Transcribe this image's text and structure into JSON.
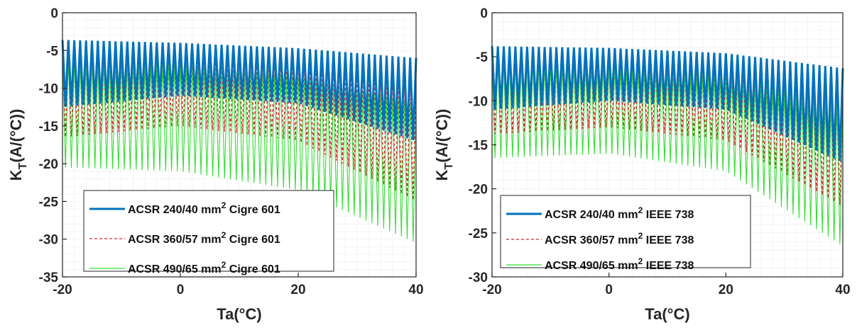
{
  "chart_data": [
    {
      "type": "line",
      "xlabel": "Ta(°C)",
      "ylabel_main": "K",
      "ylabel_sub": "T",
      "ylabel_rest": "(A/(°C))",
      "xlim": [
        -20,
        40
      ],
      "ylim": [
        -35,
        0
      ],
      "xticks": [
        "-20",
        "0",
        "20",
        "40"
      ],
      "yticks": [
        "0",
        "-5",
        "-10",
        "-15",
        "-20",
        "-25",
        "-30",
        "-35"
      ],
      "grid": "minor",
      "legend_position": "bottom-left",
      "oscillation_cycles": 60,
      "series": [
        {
          "name_main": "ACSR 240/40 mm",
          "name_sup": "2",
          "name_tail": " Cigre 601",
          "color": "#0072BD",
          "style": "solid",
          "x": [
            -20,
            0,
            20,
            40
          ],
          "upper": [
            -3.6,
            -4.0,
            -4.7,
            -6.0
          ],
          "lower": [
            -12.5,
            -11.0,
            -12.0,
            -17.0
          ]
        },
        {
          "name_main": "ACSR 360/57 mm",
          "name_sup": "2",
          "name_tail": " Cigre 601",
          "color": "#D62728",
          "style": "dashed",
          "x": [
            -20,
            0,
            20,
            40
          ],
          "upper": [
            -4.8,
            -5.2,
            -6.5,
            -9.0
          ],
          "lower": [
            -16.5,
            -15.0,
            -17.0,
            -25.0
          ]
        },
        {
          "name_main": "ACSR 490/65 mm",
          "name_sup": "2",
          "name_tail": " Cigre 601",
          "color": "#33DD33",
          "style": "solid",
          "x": [
            -20,
            0,
            20,
            40
          ],
          "upper": [
            -6.0,
            -6.8,
            -8.5,
            -12.0
          ],
          "lower": [
            -20.5,
            -21.0,
            -23.5,
            -30.5
          ]
        }
      ]
    },
    {
      "type": "line",
      "xlabel": "Ta(°C)",
      "ylabel_main": "K",
      "ylabel_sub": "T",
      "ylabel_rest": "(A/(°C))",
      "xlim": [
        -20,
        40
      ],
      "ylim": [
        -30,
        0
      ],
      "xticks": [
        "-20",
        "0",
        "20",
        "40"
      ],
      "yticks": [
        "0",
        "-5",
        "-10",
        "-15",
        "-20",
        "-25",
        "-30"
      ],
      "grid": "minor",
      "legend_position": "bottom-left",
      "oscillation_cycles": 60,
      "series": [
        {
          "name_main": "ACSR 240/40 mm",
          "name_sup": "2",
          "name_tail": " IEEE 738",
          "color": "#0072BD",
          "style": "solid",
          "x": [
            -20,
            0,
            20,
            40
          ],
          "upper": [
            -3.8,
            -4.0,
            -4.6,
            -6.3
          ],
          "lower": [
            -11.0,
            -10.0,
            -11.0,
            -17.0
          ]
        },
        {
          "name_main": "ACSR 360/57 mm",
          "name_sup": "2",
          "name_tail": " IEEE 738",
          "color": "#D62728",
          "style": "dashed",
          "x": [
            -20,
            0,
            20,
            40
          ],
          "upper": [
            -4.6,
            -4.9,
            -5.8,
            -8.0
          ],
          "lower": [
            -13.8,
            -13.0,
            -14.5,
            -22.0
          ]
        },
        {
          "name_main": "ACSR 490/65 mm",
          "name_sup": "2",
          "name_tail": " IEEE 738",
          "color": "#33DD33",
          "style": "solid",
          "x": [
            -20,
            0,
            20,
            40
          ],
          "upper": [
            -5.5,
            -6.0,
            -7.0,
            -10.5
          ],
          "lower": [
            -16.5,
            -16.0,
            -18.0,
            -26.5
          ]
        }
      ]
    }
  ]
}
